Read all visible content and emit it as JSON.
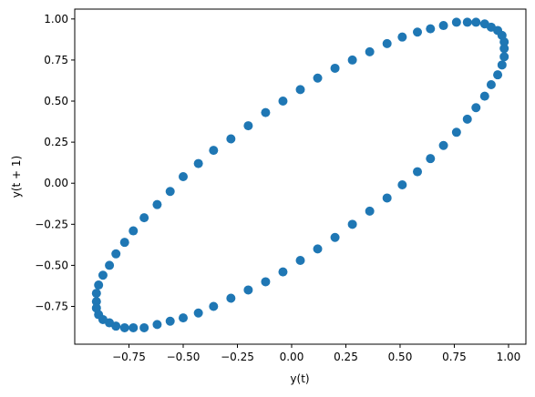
{
  "chart_data": {
    "type": "scatter",
    "xlabel": "y(t)",
    "ylabel": "y(t + 1)",
    "color": "#1f77b4",
    "x": [
      0.04,
      0.2,
      0.36,
      0.51,
      0.64,
      0.76,
      0.85,
      0.92,
      0.97,
      0.98,
      0.97,
      0.92,
      0.85,
      0.76,
      0.64,
      0.51,
      0.36,
      0.2,
      0.04,
      -0.12,
      -0.28,
      -0.43,
      -0.56,
      -0.68,
      -0.77,
      -0.84,
      -0.89,
      -0.9,
      -0.89,
      -0.84,
      -0.77,
      -0.68,
      -0.56,
      -0.43,
      -0.28,
      -0.12,
      0.12,
      0.28,
      0.44,
      0.58,
      0.7,
      0.81,
      0.89,
      0.95,
      0.98,
      0.98,
      0.95,
      0.89,
      0.81,
      0.7,
      0.58,
      0.44,
      0.28,
      0.12,
      -0.04,
      -0.2,
      -0.36,
      -0.5,
      -0.62,
      -0.73,
      -0.81,
      -0.87,
      -0.9,
      -0.9,
      -0.87,
      -0.81,
      -0.73,
      -0.62,
      -0.5,
      -0.36,
      -0.2,
      -0.04
    ],
    "y": [
      0.57,
      0.7,
      0.8,
      0.89,
      0.94,
      0.98,
      0.98,
      0.95,
      0.9,
      0.82,
      0.72,
      0.6,
      0.46,
      0.31,
      0.15,
      -0.01,
      -0.17,
      -0.33,
      -0.47,
      -0.6,
      -0.7,
      -0.79,
      -0.84,
      -0.88,
      -0.88,
      -0.85,
      -0.8,
      -0.72,
      -0.62,
      -0.5,
      -0.36,
      -0.21,
      -0.05,
      0.12,
      0.27,
      0.43,
      0.64,
      0.75,
      0.85,
      0.92,
      0.96,
      0.98,
      0.97,
      0.93,
      0.86,
      0.77,
      0.66,
      0.53,
      0.39,
      0.23,
      0.07,
      -0.09,
      -0.25,
      -0.4,
      -0.54,
      -0.65,
      -0.75,
      -0.82,
      -0.86,
      -0.88,
      -0.87,
      -0.83,
      -0.76,
      -0.67,
      -0.56,
      -0.43,
      -0.29,
      -0.13,
      0.04,
      0.2,
      0.35,
      0.5
    ],
    "xlim": [
      -1.0,
      1.08
    ],
    "ylim": [
      -0.98,
      1.06
    ],
    "xticks": [
      {
        "value": -0.75,
        "label": "−0.75"
      },
      {
        "value": -0.5,
        "label": "−0.50"
      },
      {
        "value": -0.25,
        "label": "−0.25"
      },
      {
        "value": 0,
        "label": "0.00"
      },
      {
        "value": 0.25,
        "label": "0.25"
      },
      {
        "value": 0.5,
        "label": "0.50"
      },
      {
        "value": 0.75,
        "label": "0.75"
      },
      {
        "value": 1,
        "label": "1.00"
      }
    ],
    "yticks": [
      {
        "value": -0.75,
        "label": "−0.75"
      },
      {
        "value": -0.5,
        "label": "−0.50"
      },
      {
        "value": -0.25,
        "label": "−0.25"
      },
      {
        "value": 0,
        "label": "0.00"
      },
      {
        "value": 0.25,
        "label": "0.25"
      },
      {
        "value": 0.5,
        "label": "0.50"
      },
      {
        "value": 0.75,
        "label": "0.75"
      },
      {
        "value": 1,
        "label": "1.00"
      }
    ]
  }
}
